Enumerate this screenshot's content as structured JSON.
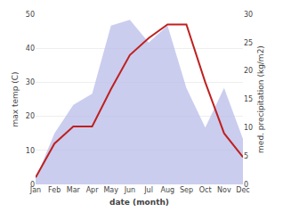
{
  "chart_data": {
    "type": "line",
    "categories": [
      "Jan",
      "Feb",
      "Mar",
      "Apr",
      "May",
      "Jun",
      "Jul",
      "Aug",
      "Sep",
      "Oct",
      "Nov",
      "Dec"
    ],
    "series": [
      {
        "type": "line",
        "color": "#c02020",
        "values": [
          2,
          12,
          17,
          17,
          28,
          38,
          43,
          47,
          47,
          30,
          15,
          8
        ]
      },
      {
        "type": "area",
        "axis": "y2",
        "color": "#b8bce8",
        "values": [
          1,
          9,
          14,
          16,
          28,
          29,
          25,
          28,
          17,
          10,
          17,
          8
        ]
      }
    ],
    "xlabel": "date (month)",
    "ylabel": "max temp (C)",
    "y2label": "med. precipitation (kg/m2)",
    "ylim": [
      0,
      50
    ],
    "yticks": [
      0,
      10,
      20,
      30,
      40,
      50
    ],
    "y2lim": [
      0,
      30
    ],
    "y2ticks": [
      0,
      5,
      10,
      15,
      20,
      25,
      30
    ],
    "grid": true
  }
}
